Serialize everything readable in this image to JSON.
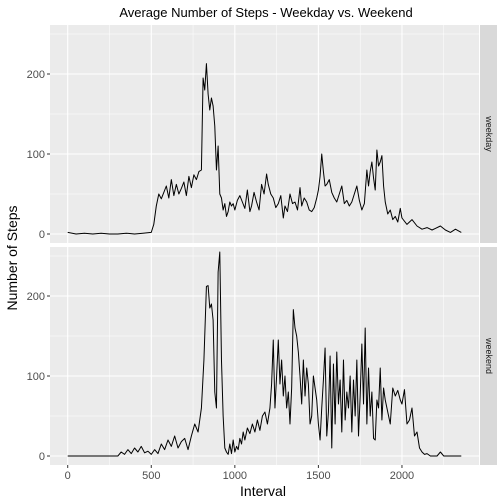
{
  "chart_data": {
    "type": "line",
    "title": "Average Number of Steps - Weekday vs. Weekend",
    "xlabel": "Interval",
    "ylabel": "Number of Steps",
    "xlim": [
      0,
      2355
    ],
    "ylim": [
      0,
      250
    ],
    "x_ticks": [
      0,
      500,
      1000,
      1500,
      2000
    ],
    "y_ticks": [
      0,
      100,
      200
    ],
    "grid": true,
    "legend": "none",
    "colors": {
      "panel_background": "#ebebeb",
      "grid_major": "#ffffff",
      "strip_background": "#d9d9d9",
      "line": "#000000"
    },
    "panels": [
      {
        "strip_label": "weekday",
        "series": [
          {
            "x": [
              0,
              50,
              100,
              150,
              200,
              250,
              300,
              350,
              400,
              450,
              500,
              515,
              530,
              545,
              560,
              575,
              590,
              605,
              620,
              635,
              650,
              665,
              680,
              695,
              710,
              725,
              740,
              755,
              770,
              785,
              800,
              810,
              820,
              830,
              840,
              850,
              860,
              870,
              880,
              890,
              900,
              910,
              920,
              930,
              940,
              950,
              960,
              970,
              980,
              990,
              1000,
              1015,
              1030,
              1045,
              1060,
              1075,
              1090,
              1100,
              1115,
              1130,
              1145,
              1160,
              1175,
              1190,
              1200,
              1215,
              1230,
              1245,
              1260,
              1275,
              1290,
              1300,
              1315,
              1330,
              1345,
              1360,
              1375,
              1390,
              1400,
              1415,
              1430,
              1445,
              1460,
              1475,
              1490,
              1500,
              1510,
              1520,
              1530,
              1540,
              1550,
              1565,
              1580,
              1595,
              1610,
              1625,
              1640,
              1655,
              1670,
              1685,
              1700,
              1715,
              1730,
              1745,
              1760,
              1775,
              1790,
              1800,
              1810,
              1820,
              1830,
              1840,
              1850,
              1860,
              1870,
              1880,
              1890,
              1900,
              1915,
              1930,
              1945,
              1960,
              1975,
              1990,
              2000,
              2030,
              2060,
              2090,
              2120,
              2150,
              2180,
              2200,
              2230,
              2260,
              2290,
              2320,
              2355
            ],
            "y": [
              2,
              0,
              1,
              0,
              1,
              0,
              0,
              1,
              0,
              1,
              2,
              12,
              35,
              50,
              44,
              52,
              60,
              45,
              68,
              48,
              62,
              50,
              57,
              65,
              48,
              72,
              58,
              74,
              68,
              78,
              80,
              195,
              180,
              213,
              175,
              155,
              170,
              160,
              135,
              80,
              110,
              50,
              45,
              30,
              38,
              22,
              28,
              40,
              35,
              38,
              30,
              42,
              48,
              40,
              32,
              55,
              28,
              35,
              52,
              40,
              30,
              62,
              50,
              75,
              62,
              50,
              45,
              33,
              38,
              48,
              20,
              35,
              28,
              50,
              38,
              40,
              30,
              58,
              35,
              45,
              40,
              30,
              28,
              33,
              45,
              55,
              72,
              100,
              78,
              60,
              62,
              68,
              52,
              45,
              40,
              50,
              60,
              38,
              42,
              35,
              40,
              50,
              60,
              42,
              30,
              38,
              80,
              60,
              78,
              90,
              70,
              55,
              105,
              85,
              90,
              98,
              60,
              40,
              25,
              30,
              18,
              22,
              15,
              32,
              20,
              12,
              18,
              10,
              6,
              8,
              5,
              7,
              10,
              5,
              2,
              6,
              2
            ]
          }
        ]
      },
      {
        "strip_label": "weekend",
        "series": [
          {
            "x": [
              0,
              50,
              100,
              150,
              200,
              250,
              300,
              320,
              340,
              360,
              380,
              400,
              420,
              440,
              460,
              480,
              500,
              520,
              540,
              560,
              580,
              600,
              620,
              640,
              660,
              680,
              700,
              720,
              740,
              760,
              780,
              800,
              815,
              830,
              840,
              850,
              860,
              870,
              880,
              890,
              900,
              910,
              920,
              930,
              940,
              950,
              960,
              970,
              980,
              990,
              1000,
              1010,
              1020,
              1030,
              1040,
              1050,
              1060,
              1075,
              1090,
              1105,
              1120,
              1135,
              1150,
              1165,
              1180,
              1195,
              1210,
              1220,
              1230,
              1240,
              1250,
              1260,
              1270,
              1280,
              1290,
              1300,
              1310,
              1320,
              1330,
              1340,
              1350,
              1360,
              1370,
              1380,
              1390,
              1400,
              1410,
              1420,
              1430,
              1440,
              1450,
              1460,
              1470,
              1480,
              1490,
              1500,
              1510,
              1520,
              1530,
              1540,
              1550,
              1560,
              1570,
              1580,
              1590,
              1600,
              1610,
              1620,
              1630,
              1640,
              1650,
              1660,
              1670,
              1680,
              1690,
              1700,
              1710,
              1720,
              1730,
              1740,
              1750,
              1760,
              1770,
              1780,
              1790,
              1800,
              1810,
              1820,
              1830,
              1840,
              1850,
              1860,
              1870,
              1880,
              1890,
              1900,
              1915,
              1930,
              1945,
              1960,
              1975,
              1990,
              2000,
              2015,
              2030,
              2045,
              2060,
              2075,
              2090,
              2105,
              2120,
              2135,
              2150,
              2170,
              2190,
              2210,
              2230,
              2250,
              2270,
              2290,
              2320,
              2355
            ],
            "y": [
              0,
              0,
              0,
              0,
              0,
              0,
              0,
              5,
              2,
              8,
              3,
              10,
              5,
              12,
              4,
              6,
              2,
              8,
              3,
              15,
              8,
              20,
              12,
              25,
              10,
              18,
              22,
              8,
              25,
              40,
              30,
              60,
              120,
              212,
              213,
              185,
              190,
              170,
              80,
              60,
              230,
              255,
              120,
              50,
              10,
              5,
              2,
              15,
              3,
              20,
              5,
              12,
              8,
              22,
              15,
              30,
              20,
              35,
              28,
              40,
              30,
              45,
              32,
              50,
              55,
              40,
              60,
              90,
              145,
              60,
              100,
              145,
              90,
              120,
              75,
              100,
              60,
              80,
              40,
              85,
              183,
              160,
              150,
              130,
              100,
              65,
              120,
              75,
              110,
              90,
              40,
              50,
              100,
              85,
              70,
              40,
              20,
              60,
              95,
              135,
              25,
              55,
              125,
              10,
              115,
              40,
              130,
              65,
              95,
              30,
              120,
              45,
              80,
              60,
              100,
              30,
              95,
              50,
              120,
              25,
              75,
              140,
              65,
              160,
              40,
              110,
              50,
              80,
              22,
              20,
              70,
              60,
              110,
              45,
              85,
              70,
              55,
              40,
              85,
              75,
              82,
              70,
              65,
              83,
              40,
              45,
              60,
              25,
              30,
              10,
              5,
              2,
              3,
              0,
              0,
              0,
              5,
              0,
              0,
              0,
              0,
              0
            ]
          }
        ]
      }
    ]
  }
}
